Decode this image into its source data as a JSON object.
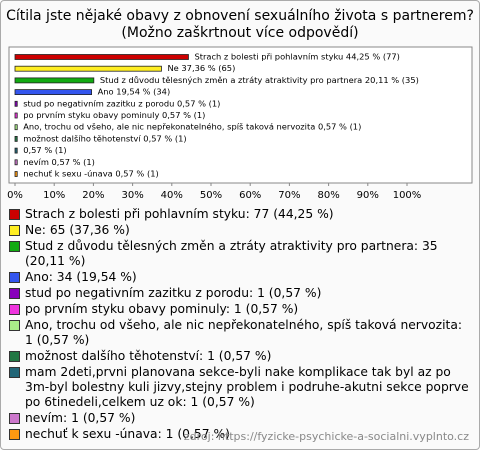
{
  "chart_data": {
    "type": "hbar",
    "title": "Cítila jste nějaké obavy z obnovení sexuálního života s partnerem?",
    "subtitle": "(Možno zaškrtnout více odpovědí)",
    "values": [
      44.25,
      37.36,
      20.11,
      19.54,
      0.57,
      0.57,
      0.57,
      0.57,
      0.57,
      0.57,
      0.57
    ],
    "value_labels": [
      "Strach z bolesti při pohlavním styku 44,25 % (77)",
      "Ne 37,36 % (65)",
      "Stud z důvodu tělesných změn a ztráty atraktivity pro partnera 20,11 % (35)",
      "Ano 19,54 % (34)",
      "stud po negativním zazitku z porodu 0,57 % (1)",
      "po prvním styku obavy pominuly 0,57 % (1)",
      "Ano, trochu od všeho, ale nic nepřekonatelného, spíš taková nervozita 0,57 % (1)",
      "možnost dalšího těhotenství 0,57 % (1)",
      "0,57 % (1)",
      "nevím 0,57 % (1)",
      "nechuť k sexu -únava 0,57 % (1)"
    ],
    "colors": [
      "#cc0000",
      "#ffee22",
      "#11aa11",
      "#3355ee",
      "#8800bb",
      "#ee33dd",
      "#aaee88",
      "#227744",
      "#226677",
      "#cc77cc",
      "#ff9911"
    ],
    "legend": [
      "Strach z bolesti při pohlavním styku: 77 (44,25 %)",
      "Ne: 65 (37,36 %)",
      "Stud z důvodu tělesných změn a ztráty atraktivity pro partnera: 35 (20,11 %)",
      "Ano: 34 (19,54 %)",
      "stud po negativním zazitku z porodu: 1 (0,57 %)",
      "po prvním styku obavy pominuly: 1 (0,57 %)",
      "Ano, trochu od všeho, ale nic nepřekonatelného, spíš taková nervozita: 1 (0,57 %)",
      "možnost dalšího těhotenství: 1 (0,57 %)",
      "mam 2deti,prvni planovana sekce-byli nake komplikace tak byl az po 3m-byl bolestny kuli jizvy,stejny problem i podruhe-akutni sekce poprve po 6tinedeli,celkem uz ok: 1 (0,57 %)",
      "nevím: 1 (0,57 %)",
      "nechuť k sexu -únava: 1 (0,57 %)"
    ],
    "xlim": [
      0,
      100
    ],
    "xticks": [
      {
        "value": 0,
        "label": "0%"
      },
      {
        "value": 10,
        "label": "10%"
      },
      {
        "value": 20,
        "label": "20%"
      },
      {
        "value": 30,
        "label": "30%"
      },
      {
        "value": 40,
        "label": "40%"
      },
      {
        "value": 50,
        "label": "50%"
      },
      {
        "value": 60,
        "label": "60%"
      },
      {
        "value": 70,
        "label": "70%"
      },
      {
        "value": 80,
        "label": "80%"
      },
      {
        "value": 90,
        "label": "90%"
      },
      {
        "value": 100,
        "label": "100%"
      }
    ],
    "source": "zdroj: https://fyzicke-psychicke-a-socialni.vyplnto.cz"
  }
}
